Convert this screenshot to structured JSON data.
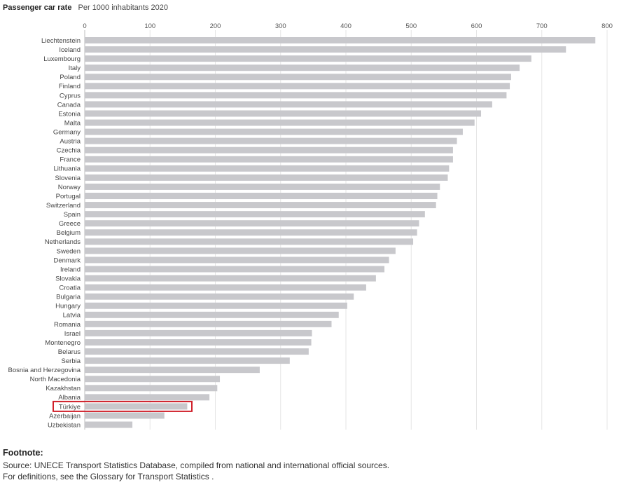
{
  "header": {
    "title": "Passenger car rate",
    "subtitle": "Per 1000 inhabitants 2020"
  },
  "chart_data": {
    "type": "bar",
    "orientation": "horizontal",
    "xlim": [
      0,
      800
    ],
    "xticks": [
      0,
      100,
      200,
      300,
      400,
      500,
      600,
      700,
      800
    ],
    "grid": true,
    "bar_color": "#c8c8cc",
    "highlight_color": "#d0202a",
    "highlight_category": "Türkiye",
    "categories": [
      "Liechtenstein",
      "Iceland",
      "Luxembourg",
      "Italy",
      "Poland",
      "Finland",
      "Cyprus",
      "Canada",
      "Estonia",
      "Malta",
      "Germany",
      "Austria",
      "Czechia",
      "France",
      "Lithuania",
      "Slovenia",
      "Norway",
      "Portugal",
      "Switzerland",
      "Spain",
      "Greece",
      "Belgium",
      "Netherlands",
      "Sweden",
      "Denmark",
      "Ireland",
      "Slovakia",
      "Croatia",
      "Bulgaria",
      "Hungary",
      "Latvia",
      "Romania",
      "Israel",
      "Montenegro",
      "Belarus",
      "Serbia",
      "Bosnia and Herzegovina",
      "North Macedonia",
      "Kazakhstan",
      "Albania",
      "Türkiye",
      "Azerbaijan",
      "Uzbekistan"
    ],
    "values": [
      782,
      737,
      684,
      666,
      653,
      651,
      646,
      624,
      607,
      597,
      579,
      570,
      564,
      564,
      558,
      556,
      544,
      540,
      538,
      521,
      512,
      509,
      503,
      476,
      466,
      459,
      446,
      431,
      412,
      402,
      389,
      378,
      348,
      347,
      343,
      314,
      268,
      207,
      203,
      191,
      157,
      122,
      73
    ]
  },
  "footnote": {
    "heading": "Footnote:",
    "source": "Source: UNECE Transport Statistics Database, compiled from national and international official sources.",
    "definitions": "For definitions, see  the Glossary for Transport Statistics ."
  }
}
